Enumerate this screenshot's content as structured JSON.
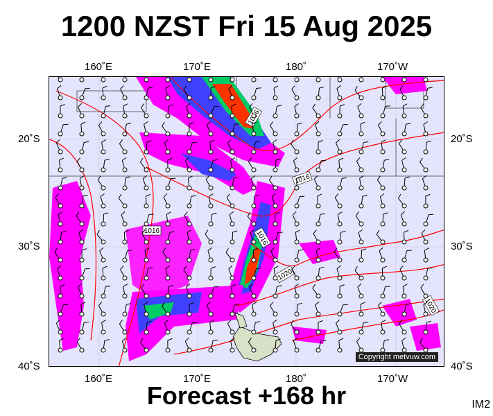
{
  "title": "1200 NZST Fri 15 Aug 2025",
  "footer": "Forecast +168 hr",
  "image_code": "IM2",
  "copyright": "Copyright metvuw.com",
  "lon_labels": [
    "160˚E",
    "170˚E",
    "180˚",
    "170˚W"
  ],
  "lat_labels": [
    "20˚S",
    "30˚S",
    "40˚S"
  ],
  "isobar_labels": [
    "1016",
    "1016",
    "1016",
    "1016",
    "1020",
    "1020"
  ],
  "colors": {
    "background": "#e4e4fc",
    "isobar": "#ff0000",
    "rain_light": "#ff00ff",
    "rain_medium": "#4040ff",
    "rain_heavy": "#00cc66",
    "rain_extreme": "#ff3300"
  }
}
